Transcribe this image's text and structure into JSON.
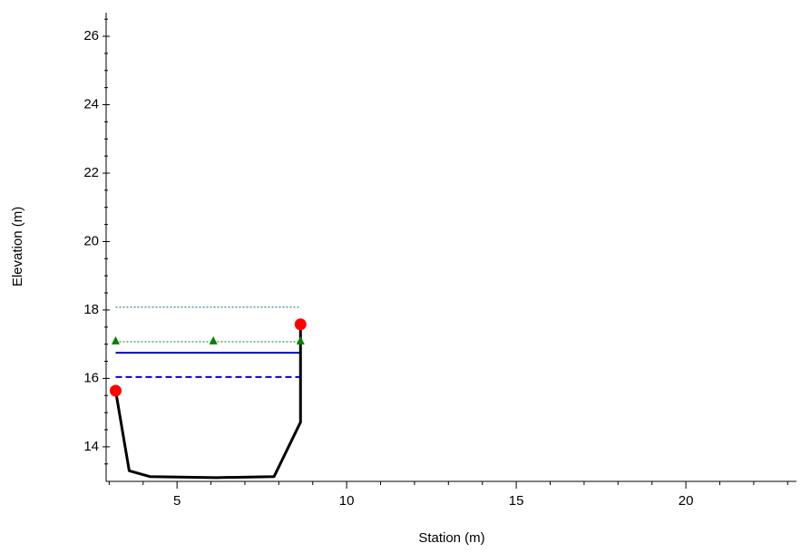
{
  "chart_data": {
    "type": "line",
    "x_label": "Station (m)",
    "y_label": "Elevation (m)",
    "xlim": [
      2.91,
      23.26
    ],
    "ylim": [
      12.99,
      26.69
    ],
    "xticks": [
      5,
      10,
      15,
      20
    ],
    "yticks": [
      14,
      16,
      18,
      20,
      22,
      24,
      26
    ],
    "xminorticks": [
      3,
      4,
      6,
      7,
      8,
      9,
      11,
      12,
      13,
      14,
      16,
      17,
      18,
      19,
      21,
      22,
      23
    ],
    "yminorticks": [
      13.5,
      14.5,
      15,
      15.5,
      16.5,
      17,
      17.5,
      18.5,
      19,
      19.5,
      20.5,
      21,
      21.5,
      22.5,
      23,
      23.5,
      24.5,
      25,
      25.5,
      26.5
    ],
    "series": [
      {
        "color": "#006666",
        "style": "dotted",
        "width": 1,
        "x": [
          3.19,
          8.64
        ],
        "values": [
          18.08,
          18.08
        ]
      },
      {
        "color": "#008000",
        "style": "dotted",
        "width": 1,
        "x": [
          3.19,
          8.64
        ],
        "values": [
          17.07,
          17.07
        ]
      },
      {
        "color": "#0000dd",
        "style": "solid",
        "width": 2,
        "x": [
          3.19,
          8.64
        ],
        "values": [
          16.75,
          16.75
        ]
      },
      {
        "color": "#0000dd",
        "style": "dashed",
        "width": 2,
        "x": [
          3.19,
          8.64
        ],
        "values": [
          16.04,
          16.04
        ]
      },
      {
        "color": "#000000",
        "style": "solid",
        "width": 3,
        "x": [
          3.19,
          3.59,
          4.2,
          6.15,
          7.86,
          8.64,
          8.64
        ],
        "values": [
          15.64,
          13.3,
          13.13,
          13.1,
          13.13,
          14.72,
          17.58
        ]
      },
      {
        "color": "#008000",
        "style": "markers",
        "marker": "triangle",
        "x": [
          3.19,
          6.07,
          8.64
        ],
        "values": [
          17.1,
          17.1,
          17.1
        ]
      },
      {
        "color": "#ff0000",
        "style": "markers",
        "marker": "circle",
        "x": [
          3.19,
          8.64
        ],
        "values": [
          15.64,
          17.58
        ]
      }
    ]
  }
}
